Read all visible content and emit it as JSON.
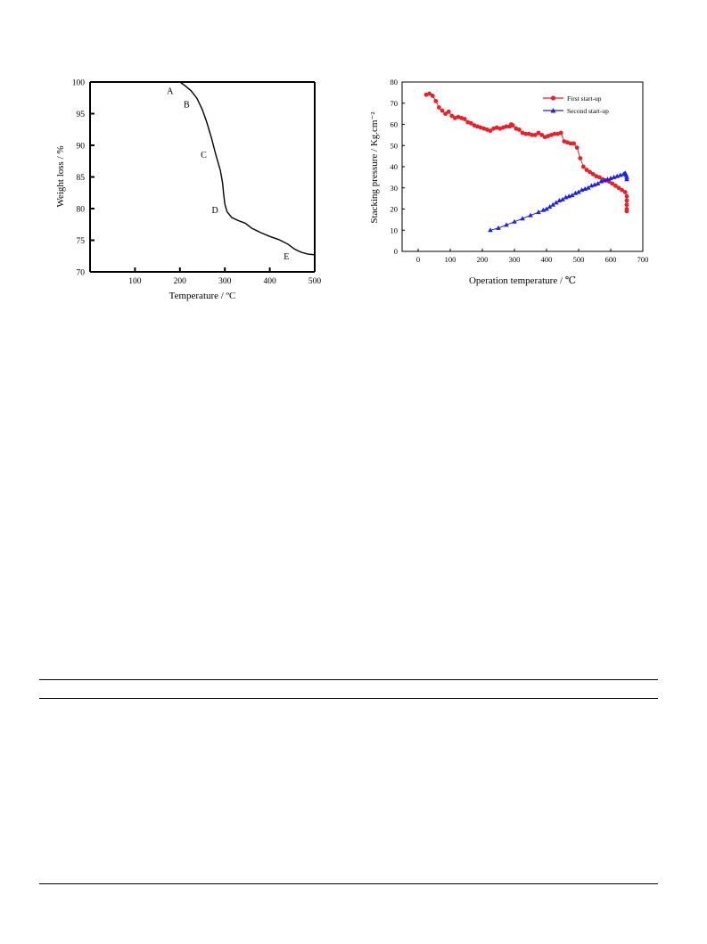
{
  "chart_data": [
    {
      "type": "line",
      "xlabel": "Temperature / ºC",
      "ylabel": "Weight loss / %",
      "xlim": [
        0,
        500
      ],
      "ylim": [
        70,
        100
      ],
      "xticks": [
        100,
        200,
        300,
        400,
        500
      ],
      "yticks": [
        70,
        75,
        80,
        85,
        90,
        95,
        100
      ],
      "grid": false,
      "series": [
        {
          "color": "#000000",
          "x": [
            200,
            212,
            225,
            238,
            250,
            260,
            270,
            280,
            290,
            295,
            297,
            300,
            305,
            315,
            330,
            345,
            360,
            380,
            400,
            420,
            440,
            455,
            470,
            485,
            500
          ],
          "y": [
            100,
            99.4,
            98.6,
            97.4,
            95.6,
            93.6,
            91.2,
            88.5,
            86,
            84,
            82.5,
            80.7,
            79.5,
            78.6,
            78.1,
            77.7,
            76.9,
            76.2,
            75.6,
            75.1,
            74.4,
            73.6,
            73.1,
            72.8,
            72.7
          ]
        }
      ],
      "annotations": [
        {
          "text": "A",
          "x": 178,
          "y": 98.1
        },
        {
          "text": "B",
          "x": 215,
          "y": 96.0
        },
        {
          "text": "C",
          "x": 253,
          "y": 88.0
        },
        {
          "text": "D",
          "x": 278,
          "y": 79.3
        },
        {
          "text": "E",
          "x": 437,
          "y": 72.0
        }
      ]
    },
    {
      "type": "line",
      "xlabel": "Operation temperature / ℃",
      "ylabel": "Stacking  pressure / Kg.cm⁻²",
      "xlim": [
        -50,
        700
      ],
      "ylim": [
        0,
        80
      ],
      "xticks": [
        0,
        100,
        200,
        300,
        400,
        500,
        600,
        700
      ],
      "yticks": [
        0,
        10,
        20,
        30,
        40,
        50,
        60,
        70,
        80
      ],
      "grid": false,
      "legend_position": "top-right",
      "series": [
        {
          "name": "First start-up",
          "color": "#e8202a",
          "marker": "circle",
          "x": [
            25,
            35,
            45,
            55,
            65,
            75,
            85,
            95,
            105,
            115,
            125,
            135,
            145,
            155,
            165,
            175,
            185,
            195,
            205,
            215,
            225,
            235,
            245,
            255,
            265,
            275,
            285,
            290,
            295,
            305,
            315,
            325,
            335,
            345,
            355,
            365,
            375,
            385,
            395,
            405,
            415,
            425,
            435,
            445,
            455,
            465,
            475,
            485,
            495,
            505,
            515,
            525,
            535,
            545,
            555,
            565,
            575,
            585,
            595,
            605,
            615,
            625,
            635,
            645,
            650,
            650,
            650,
            650,
            650
          ],
          "y": [
            74,
            74.5,
            73.5,
            71,
            68,
            66.5,
            65,
            66,
            64,
            63,
            63.5,
            63,
            62.5,
            61,
            60.5,
            59.5,
            59,
            58.5,
            58,
            57.5,
            57,
            58,
            58.5,
            58,
            58.5,
            59,
            59,
            60,
            59.5,
            58,
            57.5,
            56,
            55.5,
            55.5,
            55,
            55,
            56,
            55,
            54,
            54.5,
            55,
            55.5,
            55.5,
            56,
            52,
            51.5,
            51,
            51,
            49,
            44,
            40,
            38.5,
            37.5,
            36.5,
            35.5,
            35,
            34,
            33.5,
            33,
            32,
            31,
            30,
            29,
            28,
            26,
            24,
            22,
            20,
            19
          ]
        },
        {
          "name": "Second start-up",
          "color": "#1f20e6",
          "marker": "triangle",
          "x": [
            225,
            250,
            275,
            300,
            325,
            350,
            375,
            390,
            400,
            410,
            420,
            430,
            440,
            450,
            460,
            470,
            480,
            490,
            500,
            510,
            520,
            530,
            540,
            550,
            560,
            570,
            580,
            590,
            600,
            610,
            620,
            630,
            640,
            645,
            648,
            650,
            650
          ],
          "y": [
            10,
            11,
            12.5,
            14,
            15.5,
            17,
            18.5,
            19.5,
            20,
            21,
            22,
            23,
            24,
            24.5,
            25.5,
            26,
            26.5,
            27.5,
            28,
            29,
            29.5,
            30,
            31,
            31.5,
            32,
            33,
            33.5,
            34,
            34.5,
            35,
            35.5,
            36,
            36.5,
            37,
            36,
            35,
            34
          ]
        }
      ]
    }
  ]
}
